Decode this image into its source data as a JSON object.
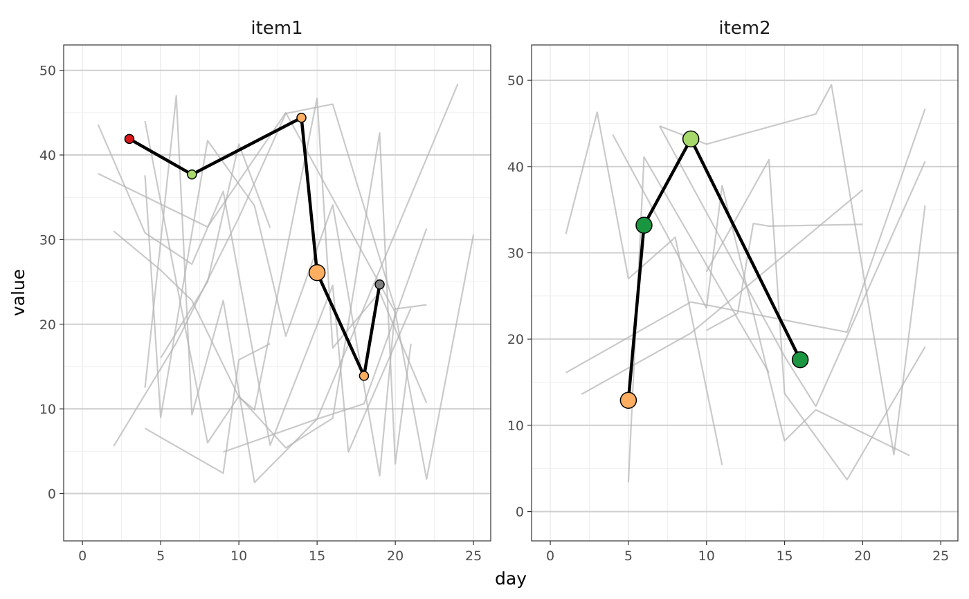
{
  "colors": {
    "background_lines": "#b3b3b3",
    "highlight_line": "#000000",
    "red": "#d7191c",
    "orange": "#fdae61",
    "light_green": "#a6d96a",
    "dark_green": "#1a9641",
    "grey": "#808080"
  },
  "chart_data": [
    {
      "type": "line",
      "title": "item1",
      "xlabel": "day",
      "ylabel": "value",
      "xlim": [
        -1.2,
        26.1
      ],
      "ylim": [
        -5.6,
        53.0
      ],
      "x_ticks": [
        0,
        5,
        10,
        15,
        20,
        25
      ],
      "y_ticks": [
        0,
        10,
        20,
        30,
        40,
        50
      ],
      "grid": true,
      "background_series": [
        [
          [
            1,
            43.6
          ],
          [
            4,
            30.8
          ],
          [
            7,
            27.1
          ],
          [
            9,
            35.7
          ],
          [
            12,
            5.7
          ],
          [
            16,
            24.6
          ],
          [
            17,
            4.9
          ],
          [
            21,
            21.9
          ]
        ],
        [
          [
            1,
            37.8
          ],
          [
            8,
            31.5
          ],
          [
            13,
            45
          ],
          [
            20,
            21.4
          ],
          [
            22,
            1.7
          ],
          [
            25,
            30.6
          ]
        ],
        [
          [
            2,
            5.6
          ],
          [
            6,
            17.8
          ],
          [
            10,
            32.6
          ],
          [
            13,
            44.9
          ],
          [
            16,
            46
          ],
          [
            20,
            21.8
          ],
          [
            22,
            22.3
          ]
        ],
        [
          [
            2,
            31
          ],
          [
            5,
            26.4
          ],
          [
            7,
            22.8
          ],
          [
            10,
            11.4
          ],
          [
            11,
            9.9
          ],
          [
            15,
            46.7
          ],
          [
            16,
            17.2
          ],
          [
            19,
            23.8
          ],
          [
            22,
            10.7
          ]
        ],
        [
          [
            4,
            12.5
          ],
          [
            6,
            47
          ],
          [
            7,
            9.3
          ],
          [
            9,
            22.8
          ],
          [
            11,
            1.3
          ],
          [
            15,
            8.8
          ],
          [
            18,
            10.6
          ],
          [
            22,
            31.3
          ]
        ],
        [
          [
            4,
            37.6
          ],
          [
            5,
            9
          ],
          [
            8,
            41.7
          ],
          [
            11,
            34
          ],
          [
            13,
            18.6
          ],
          [
            16,
            34.1
          ],
          [
            19,
            2.1
          ],
          [
            20,
            21.9
          ]
        ],
        [
          [
            4,
            44
          ],
          [
            8,
            6
          ],
          [
            10,
            11.5
          ],
          [
            13,
            5.4
          ],
          [
            16,
            8.9
          ],
          [
            19,
            42.6
          ],
          [
            20,
            3.5
          ],
          [
            21,
            17.7
          ]
        ],
        [
          [
            4,
            7.7
          ],
          [
            9,
            2.4
          ],
          [
            10,
            15.8
          ],
          [
            12,
            17.7
          ]
        ],
        [
          [
            9,
            4.9
          ],
          [
            15,
            8.8
          ],
          [
            24,
            48.4
          ]
        ],
        [
          [
            5,
            16
          ],
          [
            8,
            25
          ],
          [
            10,
            41.3
          ],
          [
            12,
            31.4
          ]
        ]
      ],
      "highlight_series": [
        [
          3,
          41.9
        ],
        [
          7,
          37.7
        ],
        [
          14,
          44.4
        ],
        [
          15,
          26.1
        ],
        [
          18,
          13.9
        ],
        [
          19,
          24.7
        ]
      ],
      "points": [
        {
          "x": 3,
          "y": 41.9,
          "color": "red",
          "size": "small"
        },
        {
          "x": 7,
          "y": 37.7,
          "color": "light_green",
          "size": "small"
        },
        {
          "x": 14,
          "y": 44.4,
          "color": "orange",
          "size": "small"
        },
        {
          "x": 15,
          "y": 26.1,
          "color": "orange",
          "size": "large"
        },
        {
          "x": 18,
          "y": 13.9,
          "color": "orange",
          "size": "small"
        },
        {
          "x": 19,
          "y": 24.7,
          "color": "grey",
          "size": "small"
        }
      ]
    },
    {
      "type": "line",
      "title": "item2",
      "xlabel": "day",
      "ylabel": "value",
      "xlim": [
        -1.2,
        26.1
      ],
      "ylim": [
        -3.4,
        54.1
      ],
      "x_ticks": [
        0,
        5,
        10,
        15,
        20,
        25
      ],
      "y_ticks": [
        0,
        10,
        20,
        30,
        40,
        50
      ],
      "grid": true,
      "background_series": [
        [
          [
            1,
            32.2
          ],
          [
            3,
            46.3
          ],
          [
            5,
            27
          ],
          [
            8,
            31.8
          ],
          [
            11,
            5.4
          ]
        ],
        [
          [
            1,
            16.1
          ],
          [
            9,
            24.3
          ],
          [
            19,
            20.8
          ],
          [
            24,
            46.7
          ]
        ],
        [
          [
            2,
            13.6
          ],
          [
            9,
            20.7
          ],
          [
            20,
            37.3
          ]
        ],
        [
          [
            4,
            43.7
          ],
          [
            10,
            23.6
          ],
          [
            11,
            37.8
          ],
          [
            15,
            8.2
          ],
          [
            17,
            11.8
          ],
          [
            23,
            6.5
          ]
        ],
        [
          [
            5,
            3.4
          ],
          [
            6,
            41.1
          ],
          [
            14,
            16.1
          ]
        ],
        [
          [
            7,
            44.7
          ],
          [
            15,
            18
          ],
          [
            17,
            12.2
          ],
          [
            24,
            40.6
          ]
        ],
        [
          [
            10,
            21
          ],
          [
            12,
            23
          ],
          [
            13,
            33.4
          ],
          [
            14,
            33.1
          ],
          [
            20,
            33.3
          ]
        ],
        [
          [
            7,
            44.7
          ],
          [
            10,
            42.6
          ],
          [
            17,
            46.1
          ],
          [
            18,
            49.5
          ],
          [
            22,
            6.6
          ],
          [
            24,
            35.5
          ]
        ],
        [
          [
            10,
            27.8
          ],
          [
            14,
            40.8
          ],
          [
            15,
            13.7
          ],
          [
            19,
            3.7
          ],
          [
            24,
            19.1
          ]
        ]
      ],
      "highlight_series": [
        [
          5,
          12.9
        ],
        [
          6,
          33.2
        ],
        [
          9,
          43.2
        ],
        [
          16,
          17.6
        ]
      ],
      "points": [
        {
          "x": 5,
          "y": 12.9,
          "color": "orange",
          "size": "large"
        },
        {
          "x": 6,
          "y": 33.2,
          "color": "dark_green",
          "size": "large"
        },
        {
          "x": 9,
          "y": 43.2,
          "color": "light_green",
          "size": "large"
        },
        {
          "x": 16,
          "y": 17.6,
          "color": "dark_green",
          "size": "large"
        }
      ]
    }
  ]
}
